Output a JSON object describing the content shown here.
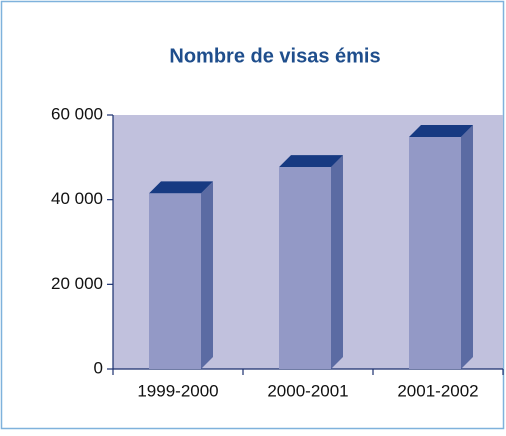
{
  "chart_data": {
    "type": "bar3d",
    "title": "Nombre de visas émis",
    "categories": [
      "1999-2000",
      "2000-2001",
      "2001-2002"
    ],
    "values": [
      41500,
      47700,
      54800
    ],
    "color": "#9399c6",
    "ylim": [
      0,
      60000
    ],
    "yticks": [
      0,
      {
        "value": 20000,
        "label": "20 000"
      },
      {
        "value": 40000,
        "label": "40 000"
      },
      {
        "value": 60000,
        "label": "60 000"
      }
    ]
  }
}
